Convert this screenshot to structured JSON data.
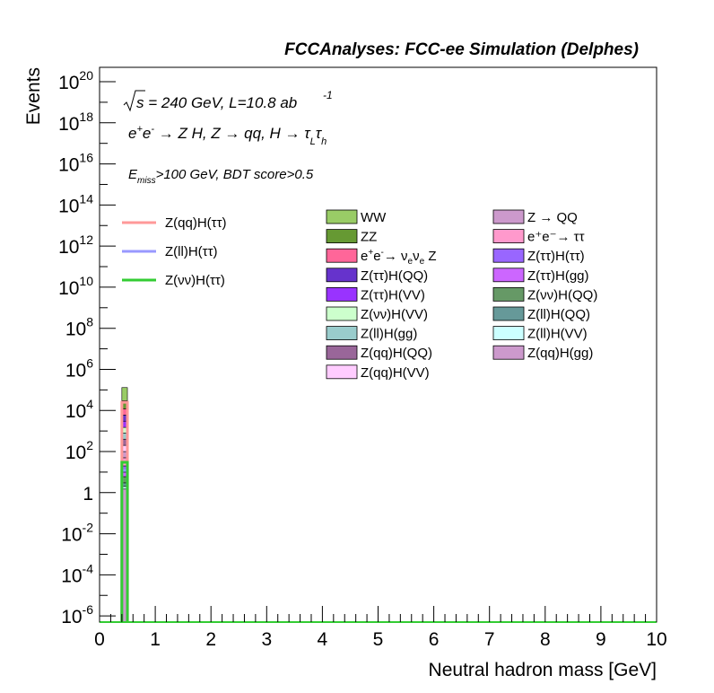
{
  "chart_data": {
    "type": "bar",
    "title": "FCCAnalyses: FCC-ee Simulation (Delphes)",
    "xlabel": "Neutral hadron mass [GeV]",
    "ylabel": "Events",
    "xlim": [
      0,
      10
    ],
    "ylim_log10": [
      -6.3,
      20.7
    ],
    "log_y": true,
    "x_ticks": [
      "0",
      "1",
      "2",
      "3",
      "4",
      "5",
      "6",
      "7",
      "8",
      "9",
      "10"
    ],
    "y_ticks": [
      {
        "base": "10",
        "exp": "20",
        "value": 1e+20
      },
      {
        "base": "10",
        "exp": "18",
        "value": 1e+18
      },
      {
        "base": "10",
        "exp": "16",
        "value": 1e+16
      },
      {
        "base": "10",
        "exp": "14",
        "value": 100000000000000.0
      },
      {
        "base": "10",
        "exp": "12",
        "value": 1000000000000.0
      },
      {
        "base": "10",
        "exp": "10",
        "value": 10000000000.0
      },
      {
        "base": "10",
        "exp": "8",
        "value": 100000000.0
      },
      {
        "base": "10",
        "exp": "6",
        "value": 1000000.0
      },
      {
        "base": "10",
        "exp": "4",
        "value": 10000.0
      },
      {
        "base": "10",
        "exp": "2",
        "value": 100.0
      },
      {
        "base": "1",
        "exp": "",
        "value": 1
      },
      {
        "base": "10",
        "exp": "-2",
        "value": 0.01
      },
      {
        "base": "10",
        "exp": "-4",
        "value": 0.0001
      },
      {
        "base": "10",
        "exp": "-6",
        "value": 1e-06
      }
    ],
    "annotations": {
      "line1": "√s = 240 GeV, L=10.8 ab⁻¹",
      "line2": "e⁺e⁻ → Z H, Z → qq, H → τLτh",
      "line3": "Emiss>100 GeV, BDT score>0.5"
    },
    "stack_bin": [
      0.4,
      0.5
    ],
    "stack_total": 130000,
    "stack_segments": [
      {
        "name": "Z(qq)H(gg)",
        "color": "#cc99cc",
        "top": 1.5
      },
      {
        "name": "Z(ll)H(VV)",
        "color": "#ccffff",
        "top": 2
      },
      {
        "name": "Z(ll)H(QQ)",
        "color": "#669999",
        "top": 3
      },
      {
        "name": "Z(νν)H(QQ)",
        "color": "#669966",
        "top": 6
      },
      {
        "name": "Z(ττ)H(gg)",
        "color": "#cc66ff",
        "top": 10
      },
      {
        "name": "Z(ττ)H(ττ)",
        "color": "#9966ff",
        "top": 20
      },
      {
        "name": "e⁺e⁻→ ττ",
        "color": "#ff99cc",
        "top": 50
      },
      {
        "name": "Z → QQ",
        "color": "#cc99cc",
        "top": 100
      },
      {
        "name": "Z(qq)H(VV)",
        "color": "#ffccff",
        "top": 200
      },
      {
        "name": "Z(qq)H(QQ)",
        "color": "#996699",
        "top": 400
      },
      {
        "name": "Z(ll)H(gg)",
        "color": "#99cccc",
        "top": 800
      },
      {
        "name": "Z(νν)H(VV)",
        "color": "#ccffcc",
        "top": 1500
      },
      {
        "name": "Z(ττ)H(VV)",
        "color": "#9933ff",
        "top": 3000
      },
      {
        "name": "Z(ττ)H(QQ)",
        "color": "#6633cc",
        "top": 6000
      },
      {
        "name": "e⁺e⁻→ νeνe Z",
        "color": "#ff6699",
        "top": 12000
      },
      {
        "name": "ZZ",
        "color": "#669933",
        "top": 30000
      },
      {
        "name": "WW",
        "color": "#99cc66",
        "top": 130000
      }
    ],
    "signal_lines": [
      {
        "name": "Z(qq)H(ττ)",
        "color": "#ff9999",
        "value": 25000
      },
      {
        "name": "Z(ll)H(ττ)",
        "color": "#9999ff",
        "value": 12
      },
      {
        "name": "Z(νν)H(ττ)",
        "color": "#33cc33",
        "value": 30
      }
    ],
    "legend_signals": [
      "Z(qq)H(ττ)",
      "Z(ll)H(ττ)",
      "Z(νν)H(ττ)"
    ],
    "legend_bkg_left": [
      {
        "name": "WW",
        "color": "#99cc66"
      },
      {
        "name": "ZZ",
        "color": "#669933"
      },
      {
        "name": "e⁺e⁻→ νeνe Z",
        "color": "#ff6699"
      },
      {
        "name": "Z(ττ)H(QQ)",
        "color": "#6633cc"
      },
      {
        "name": "Z(ττ)H(VV)",
        "color": "#9933ff"
      },
      {
        "name": "Z(νν)H(VV)",
        "color": "#ccffcc"
      },
      {
        "name": "Z(ll)H(gg)",
        "color": "#99cccc"
      },
      {
        "name": "Z(qq)H(QQ)",
        "color": "#996699"
      },
      {
        "name": "Z(qq)H(VV)",
        "color": "#ffccff"
      }
    ],
    "legend_bkg_right": [
      {
        "name": "Z → QQ",
        "color": "#cc99cc"
      },
      {
        "name": "e⁺e⁻→ ττ",
        "color": "#ff99cc"
      },
      {
        "name": "Z(ττ)H(ττ)",
        "color": "#9966ff"
      },
      {
        "name": "Z(ττ)H(gg)",
        "color": "#cc66ff"
      },
      {
        "name": "Z(νν)H(QQ)",
        "color": "#669966"
      },
      {
        "name": "Z(ll)H(QQ)",
        "color": "#669999"
      },
      {
        "name": "Z(ll)H(VV)",
        "color": "#ccffff"
      },
      {
        "name": "Z(qq)H(gg)",
        "color": "#cc99cc"
      }
    ]
  }
}
